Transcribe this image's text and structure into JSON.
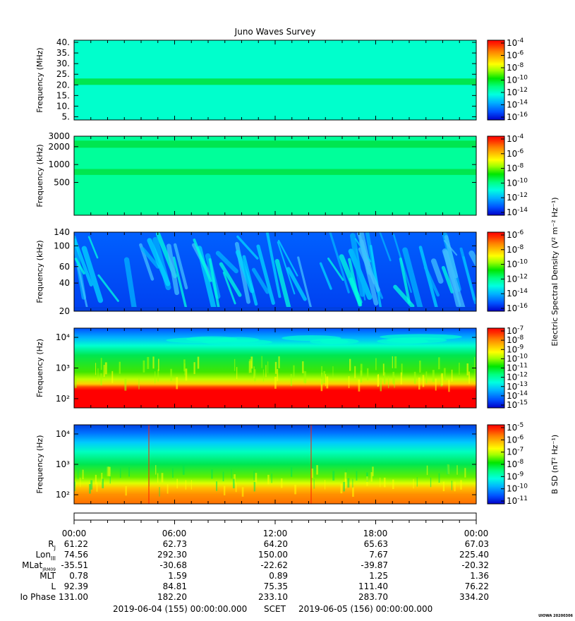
{
  "title": "Juno Waves Survey",
  "stamp": "UIOWA 20200306",
  "colors": {
    "scale": [
      "#0000c8",
      "#0050ff",
      "#00b4ff",
      "#00ffe0",
      "#00ff80",
      "#00e600",
      "#a0ff00",
      "#ffff00",
      "#ffc000",
      "#ff8000",
      "#ff3000",
      "#ff0000"
    ]
  },
  "chart_data": [
    {
      "type": "heatmap",
      "ylabel": "Frequency (MHz)",
      "yscale": "linear",
      "ylim": [
        3.5,
        41
      ],
      "yticks": [
        "40.",
        "35.",
        "30.",
        "25.",
        "20.",
        "15.",
        "10.",
        "5."
      ],
      "ytick_values": [
        40,
        35,
        30,
        25,
        20,
        15,
        10,
        5
      ],
      "colorbar_ticks": [
        "-4",
        "-6",
        "-8",
        "-10",
        "-12",
        "-14",
        "-16"
      ],
      "colorbar_label": "",
      "background": "#00ffcc",
      "bands": [
        {
          "y": 21.5,
          "width": 1.5,
          "color": "#00e650"
        }
      ]
    },
    {
      "type": "heatmap",
      "ylabel": "Frequency (kHz)",
      "yscale": "log",
      "ylim": [
        140,
        3000
      ],
      "yticks": [
        "3000",
        "2000",
        "1000",
        "500"
      ],
      "ytick_values": [
        3000,
        2000,
        1000,
        500
      ],
      "colorbar_ticks": [
        "-4",
        "-6",
        "-8",
        "-10",
        "-12",
        "-14"
      ],
      "colorbar_label": "",
      "background": "#00ff9a",
      "bands": [
        {
          "y": 2200,
          "width": 0.06,
          "color": "#00e650"
        },
        {
          "y": 750,
          "width": 0.05,
          "color": "#00e650"
        }
      ]
    },
    {
      "type": "heatmap",
      "ylabel": "Frequency (kHz)",
      "yscale": "log",
      "ylim": [
        20,
        140
      ],
      "yticks": [
        "140",
        "100",
        "60",
        "40",
        "20"
      ],
      "ytick_values": [
        140,
        100,
        60,
        40,
        20
      ],
      "colorbar_ticks": [
        "-6",
        "-8",
        "-10",
        "-12",
        "-14",
        "-16"
      ],
      "colorbar_label": "Electric Spectral Density (V² m⁻² Hz⁻¹)",
      "background": "#0050ff",
      "bands": []
    },
    {
      "type": "heatmap",
      "ylabel": "Frequency (Hz)",
      "yscale": "log",
      "ylim": [
        50,
        20000
      ],
      "yticks": [
        "10⁴",
        "10³",
        "10²"
      ],
      "ytick_values": [
        10000,
        1000,
        100
      ],
      "colorbar_ticks": [
        "-7",
        "-8",
        "-9",
        "-10",
        "-11",
        "-12",
        "-13",
        "-14",
        "-15"
      ],
      "colorbar_label": "",
      "background": "#00e600",
      "bands": []
    },
    {
      "type": "heatmap",
      "ylabel": "Frequency (Hz)",
      "yscale": "log",
      "ylim": [
        50,
        20000
      ],
      "yticks": [
        "10⁴",
        "10³",
        "10²"
      ],
      "ytick_values": [
        10000,
        1000,
        100
      ],
      "colorbar_ticks": [
        "-5",
        "-6",
        "-7",
        "-8",
        "-9",
        "-10",
        "-11"
      ],
      "colorbar_label": "B SD (nT² Hz⁻¹)",
      "background": "#00ff80",
      "bands": []
    }
  ],
  "ephemeris": {
    "times": [
      "00:00",
      "06:00",
      "12:00",
      "18:00",
      "00:00"
    ],
    "rows": [
      {
        "label": "R",
        "sub": "J",
        "values": [
          "61.22",
          "62.73",
          "64.20",
          "65.63",
          "67.03"
        ]
      },
      {
        "label": "Lon",
        "sub": "III",
        "values": [
          "74.56",
          "292.30",
          "150.00",
          "7.67",
          "225.40"
        ]
      },
      {
        "label": "MLat",
        "sub": "JRM09",
        "values": [
          "-35.51",
          "-30.68",
          "-22.62",
          "-39.87",
          "-20.32"
        ]
      },
      {
        "label": "MLT",
        "sub": "",
        "values": [
          "0.78",
          "1.59",
          "0.89",
          "1.25",
          "1.36"
        ]
      },
      {
        "label": "L",
        "sub": "",
        "values": [
          "92.39",
          "84.81",
          "75.35",
          "111.40",
          "76.22"
        ]
      },
      {
        "label": "Io Phase",
        "sub": "",
        "values": [
          "131.00",
          "182.20",
          "233.10",
          "283.70",
          "334.20"
        ]
      }
    ],
    "footer_start": "2019-06-04 (155) 00:00:00.000",
    "footer_mid": "SCET",
    "footer_end": "2019-06-05 (156) 00:00:00.000"
  }
}
